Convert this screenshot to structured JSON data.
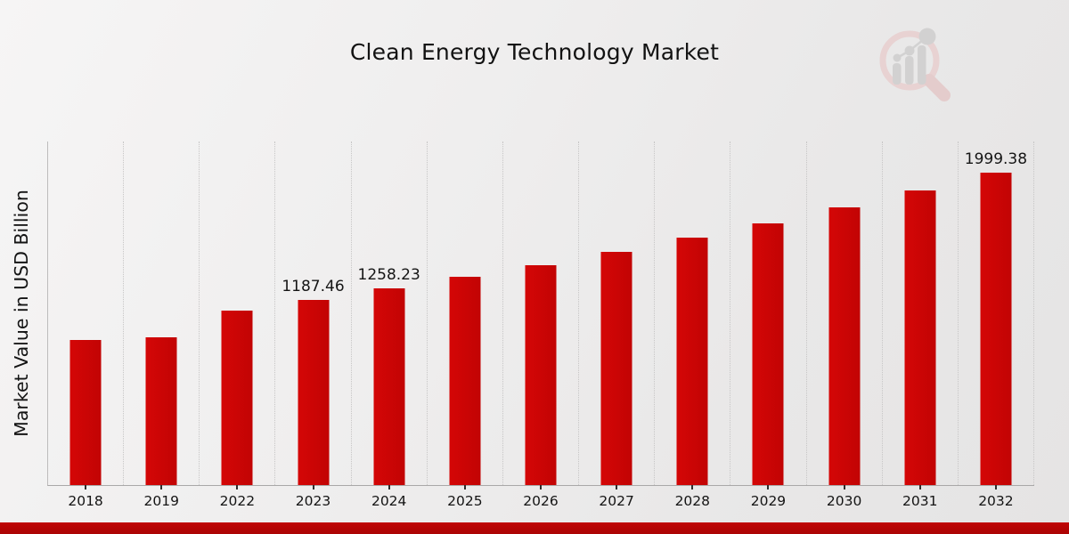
{
  "title": "Clean Energy Technology Market",
  "ylabel": "Market Value in USD Billion",
  "colors": {
    "bar": "#d40606",
    "bar_dark": "#c20404",
    "footer": "#c00505",
    "footer_dark": "#ab0404",
    "gridline": "#c7c6c6",
    "logo_ring": "#e8d2d2",
    "logo_bars": "#d2d1d1"
  },
  "chart_data": {
    "type": "bar",
    "title": "Clean Energy Technology Market",
    "xlabel": "",
    "ylabel": "Market Value in USD Billion",
    "ylim": [
      0,
      2200
    ],
    "grid": "vertical-dotted",
    "legend": "none",
    "categories": [
      "2018",
      "2019",
      "2022",
      "2023",
      "2024",
      "2025",
      "2026",
      "2027",
      "2028",
      "2029",
      "2030",
      "2031",
      "2032"
    ],
    "values": [
      930,
      945,
      1120,
      1187.46,
      1258.23,
      1335,
      1410,
      1495,
      1585,
      1675,
      1780,
      1885,
      1999.38
    ],
    "points": [
      {
        "year": "2018",
        "value": 930
      },
      {
        "year": "2019",
        "value": 945
      },
      {
        "year": "2022",
        "value": 1120
      },
      {
        "year": "2023",
        "value": 1187.46,
        "label": "1187.46"
      },
      {
        "year": "2024",
        "value": 1258.23,
        "label": "1258.23"
      },
      {
        "year": "2025",
        "value": 1335
      },
      {
        "year": "2026",
        "value": 1410
      },
      {
        "year": "2027",
        "value": 1495
      },
      {
        "year": "2028",
        "value": 1585
      },
      {
        "year": "2029",
        "value": 1675
      },
      {
        "year": "2030",
        "value": 1780
      },
      {
        "year": "2031",
        "value": 1885
      },
      {
        "year": "2032",
        "value": 1999.38,
        "label": "1999.38"
      }
    ]
  },
  "logo": {
    "name": "market-research-chart-logo"
  }
}
